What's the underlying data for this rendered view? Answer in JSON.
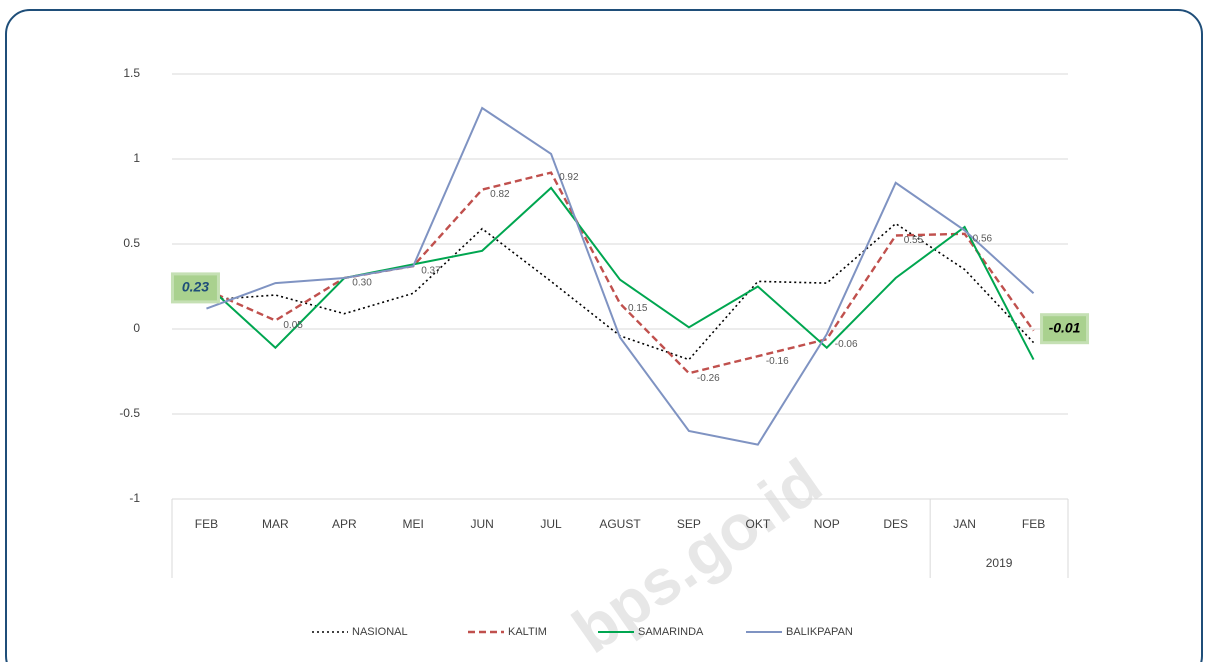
{
  "chart_data": {
    "type": "line",
    "categories": [
      "FEB",
      "MAR",
      "APR",
      "MEI",
      "JUN",
      "JUL",
      "AGUST",
      "SEP",
      "OKT",
      "NOP",
      "DES",
      "JAN",
      "FEB"
    ],
    "year_label": "2019",
    "watermark": "bps.go.id",
    "ylim": [
      -1,
      1.5
    ],
    "yticks": [
      -1,
      -0.5,
      0,
      0.5,
      1,
      1.5
    ],
    "grid": true,
    "legend": "bottom",
    "series": [
      {
        "name": "NASIONAL",
        "color": "#000000",
        "style": "dotted",
        "values": [
          0.17,
          0.2,
          0.09,
          0.21,
          0.59,
          0.28,
          -0.04,
          -0.18,
          0.28,
          0.27,
          0.62,
          0.35,
          -0.08
        ]
      },
      {
        "name": "KALTIM",
        "color": "#c0504d",
        "style": "dashed",
        "values": [
          0.23,
          0.05,
          0.3,
          0.37,
          0.82,
          0.92,
          0.15,
          -0.26,
          -0.16,
          -0.06,
          0.55,
          0.56,
          -0.01
        ],
        "value_labels": [
          "0.23",
          "0.05",
          "0.30",
          "0.37",
          "0.82",
          "0.92",
          "0.15",
          "-0.26",
          "-0.16",
          "-0.06",
          "0.55",
          "0.56",
          "-0.01"
        ]
      },
      {
        "name": "SAMARINDA",
        "color": "#00a650",
        "style": "solid",
        "values": [
          0.26,
          -0.11,
          0.3,
          0.38,
          0.46,
          0.83,
          0.29,
          0.01,
          0.25,
          -0.11,
          0.3,
          0.6,
          -0.18
        ]
      },
      {
        "name": "BALIKPAPAN",
        "color": "#7f93c2",
        "style": "solid",
        "values": [
          0.12,
          0.27,
          0.3,
          0.37,
          1.3,
          1.03,
          -0.05,
          -0.6,
          -0.68,
          -0.03,
          0.86,
          0.58,
          0.21
        ]
      }
    ]
  }
}
